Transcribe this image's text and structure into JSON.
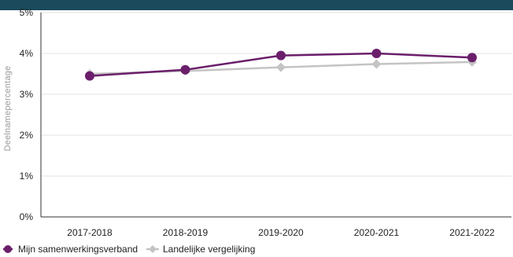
{
  "colors": {
    "topbar": "#1a4a5c",
    "series_primary": "#6b1f6b",
    "series_compare": "#c4c4c4",
    "axis": "#333333",
    "grid": "#e3e3e3"
  },
  "chart_data": {
    "type": "line",
    "title": "",
    "xlabel": "",
    "ylabel": "Deelnamepercentage",
    "categories": [
      "2017-2018",
      "2018-2019",
      "2019-2020",
      "2020-2021",
      "2021-2022"
    ],
    "ylim": [
      0,
      5
    ],
    "yticks": [
      0,
      1,
      2,
      3,
      4,
      5
    ],
    "ytick_labels": [
      "0%",
      "1%",
      "2%",
      "3%",
      "4%",
      "5%"
    ],
    "grid": "horizontal",
    "legend_position": "bottom-left",
    "series": [
      {
        "name": "Mijn samenwerkingsverband",
        "values": [
          3.45,
          3.6,
          3.95,
          4.0,
          3.9
        ],
        "marker": "circle",
        "color": "#6b1f6b"
      },
      {
        "name": "Landelijke vergelijking",
        "values": [
          3.5,
          3.57,
          3.66,
          3.74,
          3.79
        ],
        "marker": "diamond",
        "color": "#c4c4c4"
      }
    ]
  }
}
